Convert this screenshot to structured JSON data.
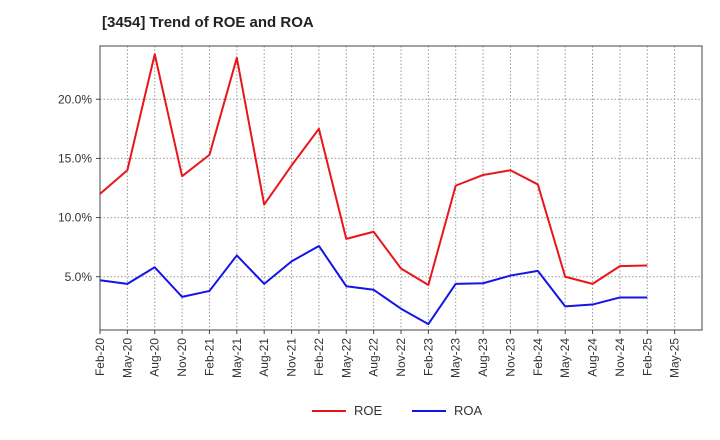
{
  "chart_data": {
    "type": "line",
    "title": "[3454]  Trend of ROE and ROA",
    "categories": [
      "Feb-20",
      "May-20",
      "Aug-20",
      "Nov-20",
      "Feb-21",
      "May-21",
      "Aug-21",
      "Nov-21",
      "Feb-22",
      "May-22",
      "Aug-22",
      "Nov-22",
      "Feb-23",
      "May-23",
      "Aug-23",
      "Nov-23",
      "Feb-24",
      "May-24",
      "Aug-24",
      "Nov-24",
      "Feb-25",
      "May-25"
    ],
    "series": [
      {
        "name": "ROE",
        "color": "#e8161b",
        "values": [
          12.0,
          14.0,
          23.8,
          13.5,
          15.3,
          23.5,
          11.1,
          14.4,
          17.5,
          8.2,
          8.8,
          5.7,
          4.3,
          12.7,
          13.6,
          14.0,
          12.8,
          5.0,
          4.4,
          5.9,
          5.95,
          null
        ]
      },
      {
        "name": "ROA",
        "color": "#1414e6",
        "values": [
          4.7,
          4.4,
          5.8,
          3.3,
          3.8,
          6.8,
          4.4,
          6.3,
          7.6,
          4.2,
          3.9,
          2.3,
          1.0,
          4.4,
          4.45,
          5.1,
          5.5,
          2.5,
          2.65,
          3.25,
          3.25,
          null
        ]
      }
    ],
    "yticks": [
      5.0,
      10.0,
      15.0,
      20.0
    ],
    "ytick_labels": [
      "5.0%",
      "10.0%",
      "15.0%",
      "20.0%"
    ],
    "ylim": [
      0.5,
      24.5
    ],
    "grid": true,
    "legend": "bottom-center"
  }
}
